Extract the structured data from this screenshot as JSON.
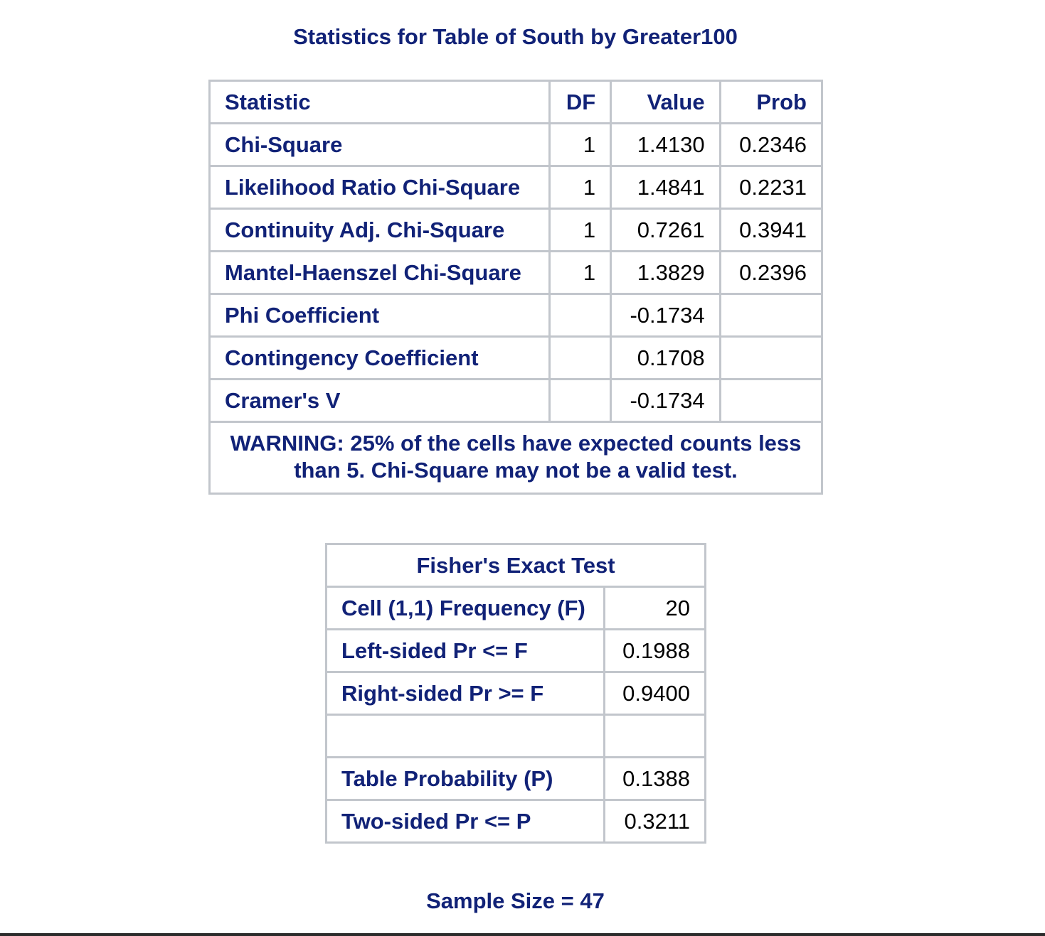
{
  "title": "Statistics for Table of South by Greater100",
  "stats_table": {
    "headers": {
      "statistic": "Statistic",
      "df": "DF",
      "value": "Value",
      "prob": "Prob"
    },
    "rows": [
      {
        "statistic": "Chi-Square",
        "df": "1",
        "value": "1.4130",
        "prob": "0.2346"
      },
      {
        "statistic": "Likelihood Ratio Chi-Square",
        "df": "1",
        "value": "1.4841",
        "prob": "0.2231"
      },
      {
        "statistic": "Continuity Adj. Chi-Square",
        "df": "1",
        "value": "0.7261",
        "prob": "0.3941"
      },
      {
        "statistic": "Mantel-Haenszel Chi-Square",
        "df": "1",
        "value": "1.3829",
        "prob": "0.2396"
      },
      {
        "statistic": "Phi Coefficient",
        "df": "",
        "value": "-0.1734",
        "prob": ""
      },
      {
        "statistic": "Contingency Coefficient",
        "df": "",
        "value": "0.1708",
        "prob": ""
      },
      {
        "statistic": "Cramer's V",
        "df": "",
        "value": "-0.1734",
        "prob": ""
      }
    ],
    "warning": "WARNING: 25% of the cells have expected counts less than 5. Chi-Square may not be a valid test."
  },
  "fisher_table": {
    "caption": "Fisher's Exact Test",
    "rows": [
      {
        "label": "Cell (1,1) Frequency (F)",
        "value": "20"
      },
      {
        "label": "Left-sided Pr <= F",
        "value": "0.1988"
      },
      {
        "label": "Right-sided Pr >= F",
        "value": "0.9400"
      },
      {
        "label": "",
        "value": ""
      },
      {
        "label": "Table Probability (P)",
        "value": "0.1388"
      },
      {
        "label": "Two-sided Pr <= P",
        "value": "0.3211"
      }
    ]
  },
  "sample_size": "Sample Size = 47"
}
